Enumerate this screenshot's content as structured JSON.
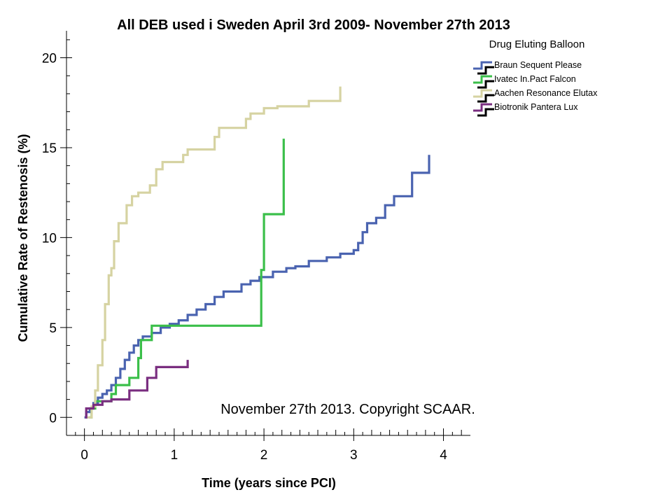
{
  "chart_data": {
    "type": "line",
    "title": "All DEB used i Sweden April 3rd 2009- November 27th 2013",
    "xlabel": "Time (years since PCI)",
    "ylabel": "Cumulative Rate of Restenosis (%)",
    "xlim": [
      -0.2,
      4.3
    ],
    "ylim": [
      -1.0,
      21.5
    ],
    "xticks": [
      0,
      1,
      2,
      3,
      4
    ],
    "yticks": [
      0,
      5,
      10,
      15,
      20
    ],
    "legend_title": "Drug Eluting Balloon",
    "legend_position": "top-right",
    "annotation": "November 27th 2013. Copyright SCAAR.",
    "grid": false,
    "series": [
      {
        "name": "Braun Sequent Please",
        "color": "#4a63b0",
        "step": true,
        "points": [
          [
            0,
            0
          ],
          [
            0.02,
            0.3
          ],
          [
            0.06,
            0.5
          ],
          [
            0.1,
            0.8
          ],
          [
            0.15,
            1.1
          ],
          [
            0.2,
            1.3
          ],
          [
            0.25,
            1.5
          ],
          [
            0.3,
            1.8
          ],
          [
            0.35,
            2.2
          ],
          [
            0.4,
            2.7
          ],
          [
            0.45,
            3.2
          ],
          [
            0.5,
            3.6
          ],
          [
            0.55,
            4.0
          ],
          [
            0.6,
            4.3
          ],
          [
            0.65,
            4.5
          ],
          [
            0.75,
            4.7
          ],
          [
            0.85,
            5.0
          ],
          [
            0.95,
            5.2
          ],
          [
            1.05,
            5.4
          ],
          [
            1.15,
            5.7
          ],
          [
            1.25,
            6.0
          ],
          [
            1.35,
            6.3
          ],
          [
            1.45,
            6.7
          ],
          [
            1.55,
            7.0
          ],
          [
            1.75,
            7.4
          ],
          [
            1.85,
            7.6
          ],
          [
            1.95,
            7.8
          ],
          [
            2.1,
            8.1
          ],
          [
            2.25,
            8.3
          ],
          [
            2.35,
            8.4
          ],
          [
            2.5,
            8.7
          ],
          [
            2.7,
            8.9
          ],
          [
            2.85,
            9.1
          ],
          [
            3.0,
            9.3
          ],
          [
            3.05,
            9.7
          ],
          [
            3.1,
            10.3
          ],
          [
            3.15,
            10.8
          ],
          [
            3.25,
            11.1
          ],
          [
            3.35,
            11.8
          ],
          [
            3.45,
            12.3
          ],
          [
            3.65,
            13.6
          ],
          [
            3.84,
            14.6
          ]
        ]
      },
      {
        "name": "Ivatec In.Pact Falcon",
        "color": "#3bbf4a",
        "step": true,
        "points": [
          [
            0.05,
            0
          ],
          [
            0.08,
            0.5
          ],
          [
            0.12,
            0.9
          ],
          [
            0.3,
            1.3
          ],
          [
            0.35,
            1.8
          ],
          [
            0.5,
            2.2
          ],
          [
            0.6,
            3.3
          ],
          [
            0.63,
            4.3
          ],
          [
            0.75,
            5.1
          ],
          [
            1.97,
            8.2
          ],
          [
            2.0,
            11.3
          ],
          [
            2.22,
            15.5
          ]
        ]
      },
      {
        "name": "Aachen Resonance Elutax",
        "color": "#d6d3a2",
        "step": true,
        "points": [
          [
            0.03,
            0
          ],
          [
            0.08,
            0.6
          ],
          [
            0.12,
            1.5
          ],
          [
            0.15,
            2.9
          ],
          [
            0.2,
            4.3
          ],
          [
            0.23,
            6.3
          ],
          [
            0.27,
            7.9
          ],
          [
            0.3,
            8.3
          ],
          [
            0.33,
            9.8
          ],
          [
            0.38,
            10.8
          ],
          [
            0.47,
            11.8
          ],
          [
            0.53,
            12.3
          ],
          [
            0.6,
            12.5
          ],
          [
            0.73,
            12.9
          ],
          [
            0.8,
            13.8
          ],
          [
            0.87,
            14.2
          ],
          [
            1.1,
            14.6
          ],
          [
            1.15,
            14.9
          ],
          [
            1.45,
            15.6
          ],
          [
            1.5,
            16.1
          ],
          [
            1.8,
            16.6
          ],
          [
            1.85,
            16.9
          ],
          [
            2.0,
            17.2
          ],
          [
            2.15,
            17.3
          ],
          [
            2.5,
            17.6
          ],
          [
            2.85,
            18.4
          ]
        ]
      },
      {
        "name": "Biotronik Pantera Lux",
        "color": "#7a2e80",
        "step": true,
        "points": [
          [
            0.01,
            0
          ],
          [
            0.02,
            0.5
          ],
          [
            0.1,
            0.7
          ],
          [
            0.2,
            0.9
          ],
          [
            0.3,
            1.0
          ],
          [
            0.5,
            1.5
          ],
          [
            0.7,
            2.2
          ],
          [
            0.8,
            2.8
          ],
          [
            1.15,
            3.2
          ]
        ]
      }
    ]
  }
}
